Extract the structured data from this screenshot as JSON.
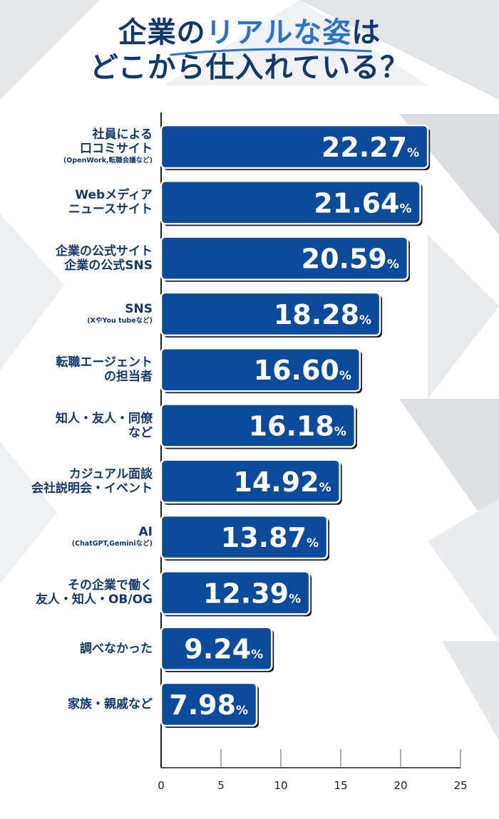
{
  "title": {
    "part1": "企業の",
    "accent": "リアルな姿",
    "part2": "は",
    "line2": "どこから仕入れている？"
  },
  "colors": {
    "bar": "#0c4a9c",
    "bar_border": "#ffffff",
    "bar_shadow": "#1a1a1a",
    "text_dark": "#14386b",
    "accent": "#2a73c8"
  },
  "chart_data": {
    "type": "bar",
    "orientation": "horizontal",
    "xlim": [
      0,
      25
    ],
    "xticks": [
      "0",
      "5",
      "10",
      "15",
      "20",
      "25"
    ],
    "value_suffix": "%",
    "categories": [
      {
        "lines": [
          "社員による",
          "口コミサイト"
        ],
        "sub": "(OpenWork,転職会議など)"
      },
      {
        "lines": [
          "Webメディア",
          "ニュースサイト"
        ],
        "sub": ""
      },
      {
        "lines": [
          "企業の公式サイト",
          "企業の公式SNS"
        ],
        "sub": ""
      },
      {
        "lines": [
          "SNS"
        ],
        "sub": "(XやYou tubeなど)"
      },
      {
        "lines": [
          "転職エージェント",
          "の担当者"
        ],
        "sub": ""
      },
      {
        "lines": [
          "知人・友人・同僚",
          "など"
        ],
        "sub": ""
      },
      {
        "lines": [
          "カジュアル面談",
          "会社説明会・イベント"
        ],
        "sub": ""
      },
      {
        "lines": [
          "AI"
        ],
        "sub": "(ChatGPT,Geminiなど)"
      },
      {
        "lines": [
          "その企業で働く",
          "友人・知人・OB/OG"
        ],
        "sub": ""
      },
      {
        "lines": [
          "調べなかった"
        ],
        "sub": ""
      },
      {
        "lines": [
          "家族・親戚など"
        ],
        "sub": ""
      }
    ],
    "values": [
      "22.27",
      "21.64",
      "20.59",
      "18.28",
      "16.60",
      "16.18",
      "14.92",
      "13.87",
      "12.39",
      "9.24",
      "7.98"
    ]
  }
}
